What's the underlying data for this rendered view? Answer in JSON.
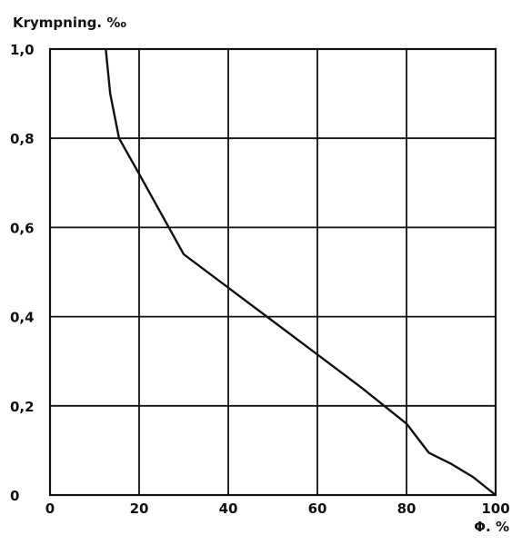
{
  "chart_data": {
    "type": "line",
    "title": "",
    "ylabel": "Krympning. ‰",
    "xlabel": "Φ. %",
    "xlim": [
      0,
      100
    ],
    "ylim": [
      0,
      1.0
    ],
    "x_ticks": [
      0,
      20,
      40,
      60,
      80,
      100
    ],
    "x_tick_labels": [
      "0",
      "20",
      "40",
      "60",
      "80",
      "100"
    ],
    "y_ticks": [
      0,
      0.2,
      0.4,
      0.6,
      0.8,
      1.0
    ],
    "y_tick_labels": [
      "0",
      "0,2",
      "0,4",
      "0,6",
      "0,8",
      "1,0"
    ],
    "grid": true,
    "legend": "none",
    "line_color": "#111111",
    "series": [
      {
        "x": [
          12.5,
          13.5,
          15.5,
          20,
          25,
          30,
          40,
          50,
          60,
          70,
          80,
          85,
          90,
          95,
          100
        ],
        "y": [
          1.0,
          0.9,
          0.8,
          0.72,
          0.63,
          0.54,
          0.465,
          0.39,
          0.315,
          0.24,
          0.16,
          0.095,
          0.07,
          0.04,
          0.0
        ]
      }
    ]
  }
}
